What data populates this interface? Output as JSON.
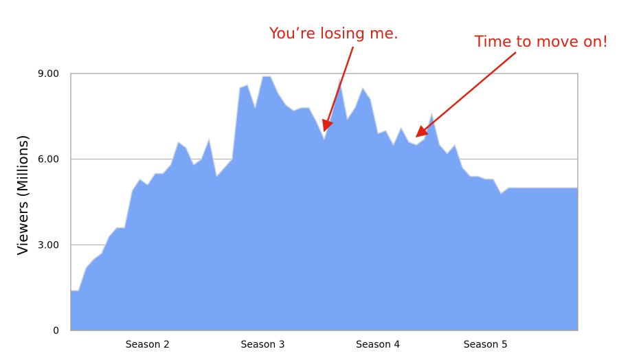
{
  "chart_data": {
    "type": "area",
    "ylabel": "Viewers (Millions)",
    "ylim": [
      0,
      9
    ],
    "yticks": [
      {
        "value": 0,
        "label": "0"
      },
      {
        "value": 3,
        "label": "3.00"
      },
      {
        "value": 6,
        "label": "6.00"
      },
      {
        "value": 9,
        "label": "9.00"
      }
    ],
    "xlim": [
      0,
      66
    ],
    "xticks": [
      {
        "x": 10,
        "label": "Season 2"
      },
      {
        "x": 25,
        "label": "Season 3"
      },
      {
        "x": 40,
        "label": "Season 4"
      },
      {
        "x": 54,
        "label": "Season 5"
      }
    ],
    "grid": true,
    "fill_color": "#7aa6f7",
    "edge_color": "#d0d4dc",
    "series": [
      {
        "x": [
          0,
          1,
          2,
          3,
          4,
          5,
          6,
          7,
          8,
          9,
          10,
          11,
          12,
          13,
          14,
          15,
          16,
          17,
          18,
          19,
          20,
          21,
          22,
          23,
          24,
          25,
          26,
          27,
          28,
          29,
          30,
          31,
          32,
          33,
          34,
          35,
          36,
          37,
          38,
          39,
          40,
          41,
          42,
          43,
          44,
          45,
          46,
          47,
          48,
          49,
          50,
          51,
          52,
          53,
          54,
          55,
          56,
          57,
          58,
          59,
          60,
          61,
          62,
          63,
          64,
          65,
          66
        ],
        "values": [
          1.4,
          1.4,
          2.2,
          2.5,
          2.7,
          3.3,
          3.6,
          3.6,
          4.9,
          5.3,
          5.1,
          5.5,
          5.5,
          5.8,
          6.6,
          6.4,
          5.8,
          6.0,
          6.7,
          5.4,
          5.7,
          6.0,
          8.5,
          8.6,
          7.8,
          8.9,
          8.9,
          8.3,
          7.9,
          7.7,
          7.8,
          7.8,
          7.3,
          6.7,
          7.6,
          8.8,
          7.4,
          7.8,
          8.5,
          8.1,
          6.9,
          7.0,
          6.5,
          7.1,
          6.6,
          6.5,
          6.7,
          7.6,
          6.5,
          6.2,
          6.5,
          5.7,
          5.4,
          5.4,
          5.3,
          5.3,
          4.8,
          5.0,
          5.0,
          5.0,
          5.0,
          5.0,
          5.0,
          5.0,
          5.0,
          5.0,
          5.0
        ]
      }
    ],
    "annotations": [
      {
        "text": "You’re losing me.",
        "color": "#dd2211",
        "target_x": 33,
        "target_y": 6.7
      },
      {
        "text": "Time to move on!",
        "color": "#dd2211",
        "target_x": 45,
        "target_y": 6.5
      }
    ]
  }
}
